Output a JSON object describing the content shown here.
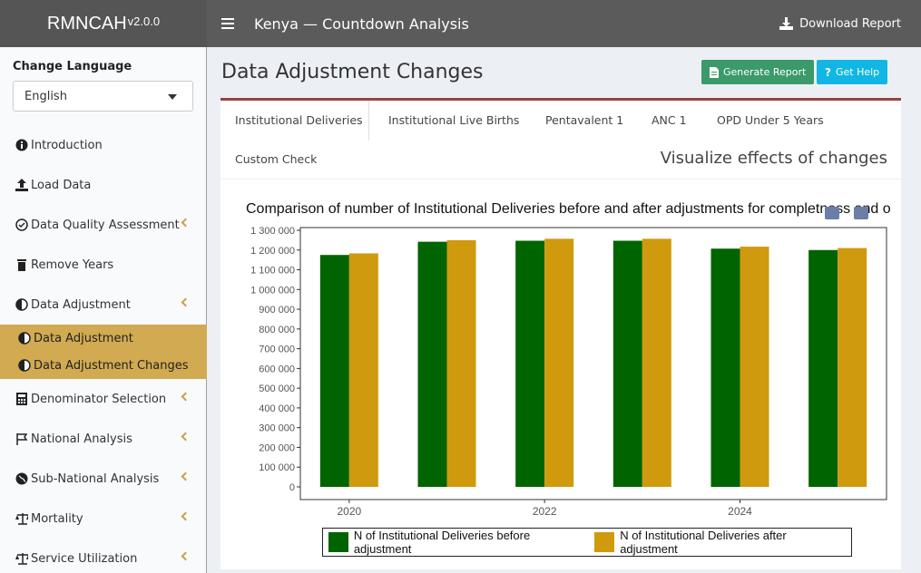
{
  "header": {
    "brand": "RMNCAH",
    "version": "v2.0.0",
    "title": "Kenya — Countdown Analysis",
    "download_label": "Download Report"
  },
  "sidebar": {
    "language_label": "Change Language",
    "language_value": "English",
    "items": [
      {
        "label": "Introduction",
        "icon": "info-icon"
      },
      {
        "label": "Load Data",
        "icon": "upload-icon"
      },
      {
        "label": "Data Quality Assessment",
        "icon": "check-circle-icon"
      },
      {
        "label": "Remove Years",
        "icon": "trash-icon"
      },
      {
        "label": "Data Adjustment",
        "icon": "adjust-icon"
      },
      {
        "label": "Denominator Selection",
        "icon": "calculator-icon"
      },
      {
        "label": "National Analysis",
        "icon": "flag-icon"
      },
      {
        "label": "Sub-National Analysis",
        "icon": "globe-icon"
      },
      {
        "label": "Mortality",
        "icon": "scale-icon"
      },
      {
        "label": "Service Utilization",
        "icon": "scale-icon"
      }
    ],
    "subitems": [
      {
        "label": "Data Adjustment"
      },
      {
        "label": "Data Adjustment Changes"
      }
    ]
  },
  "main": {
    "page_title": "Data Adjustment Changes",
    "generate_label": "Generate Report",
    "help_label": "Get Help",
    "tabs": [
      {
        "label": "Institutional Deliveries"
      },
      {
        "label": "Institutional Live Births"
      },
      {
        "label": "Pentavalent 1"
      },
      {
        "label": "ANC 1"
      },
      {
        "label": "OPD Under 5 Years"
      },
      {
        "label": "Custom Check"
      }
    ],
    "viz_title": "Visualize effects of changes"
  },
  "colors": {
    "header_bg": "#5b5b5b",
    "accent_gold": "#d1aa51",
    "box_top": "#9c4040",
    "before": "#006400",
    "after": "#d09a0e",
    "generate_btn": "#3a9a6a",
    "help_btn": "#11b6e4"
  },
  "chart_data": {
    "type": "bar",
    "title": "Comparison of number of Institutional Deliveries before and after adjustments for completness and o",
    "categories": [
      "2020",
      "2021",
      "2022",
      "2023",
      "2024",
      "2025"
    ],
    "x_tick_labels": [
      "2020",
      "2022",
      "2024"
    ],
    "series": [
      {
        "name": "N of Institutional Deliveries before adjustment",
        "color": "#006400",
        "values": [
          1175000,
          1242000,
          1247000,
          1247000,
          1207000,
          1200000
        ]
      },
      {
        "name": "N of Institutional Deliveries after adjustment",
        "color": "#d09a0e",
        "values": [
          1183000,
          1250000,
          1257000,
          1257000,
          1217000,
          1210000
        ]
      }
    ],
    "ylim": [
      0,
      1300000
    ],
    "y_ticks": [
      0,
      100000,
      200000,
      300000,
      400000,
      500000,
      600000,
      700000,
      800000,
      900000,
      1000000,
      1100000,
      1200000,
      1300000
    ],
    "y_tick_labels": [
      "0",
      "100 000",
      "200 000",
      "300 000",
      "400 000",
      "500 000",
      "600 000",
      "700 000",
      "800 000",
      "900 000",
      "1 000 000",
      "1 100 000",
      "1 200 000",
      "1 300 000"
    ],
    "grid": false,
    "legend_position": "bottom"
  }
}
